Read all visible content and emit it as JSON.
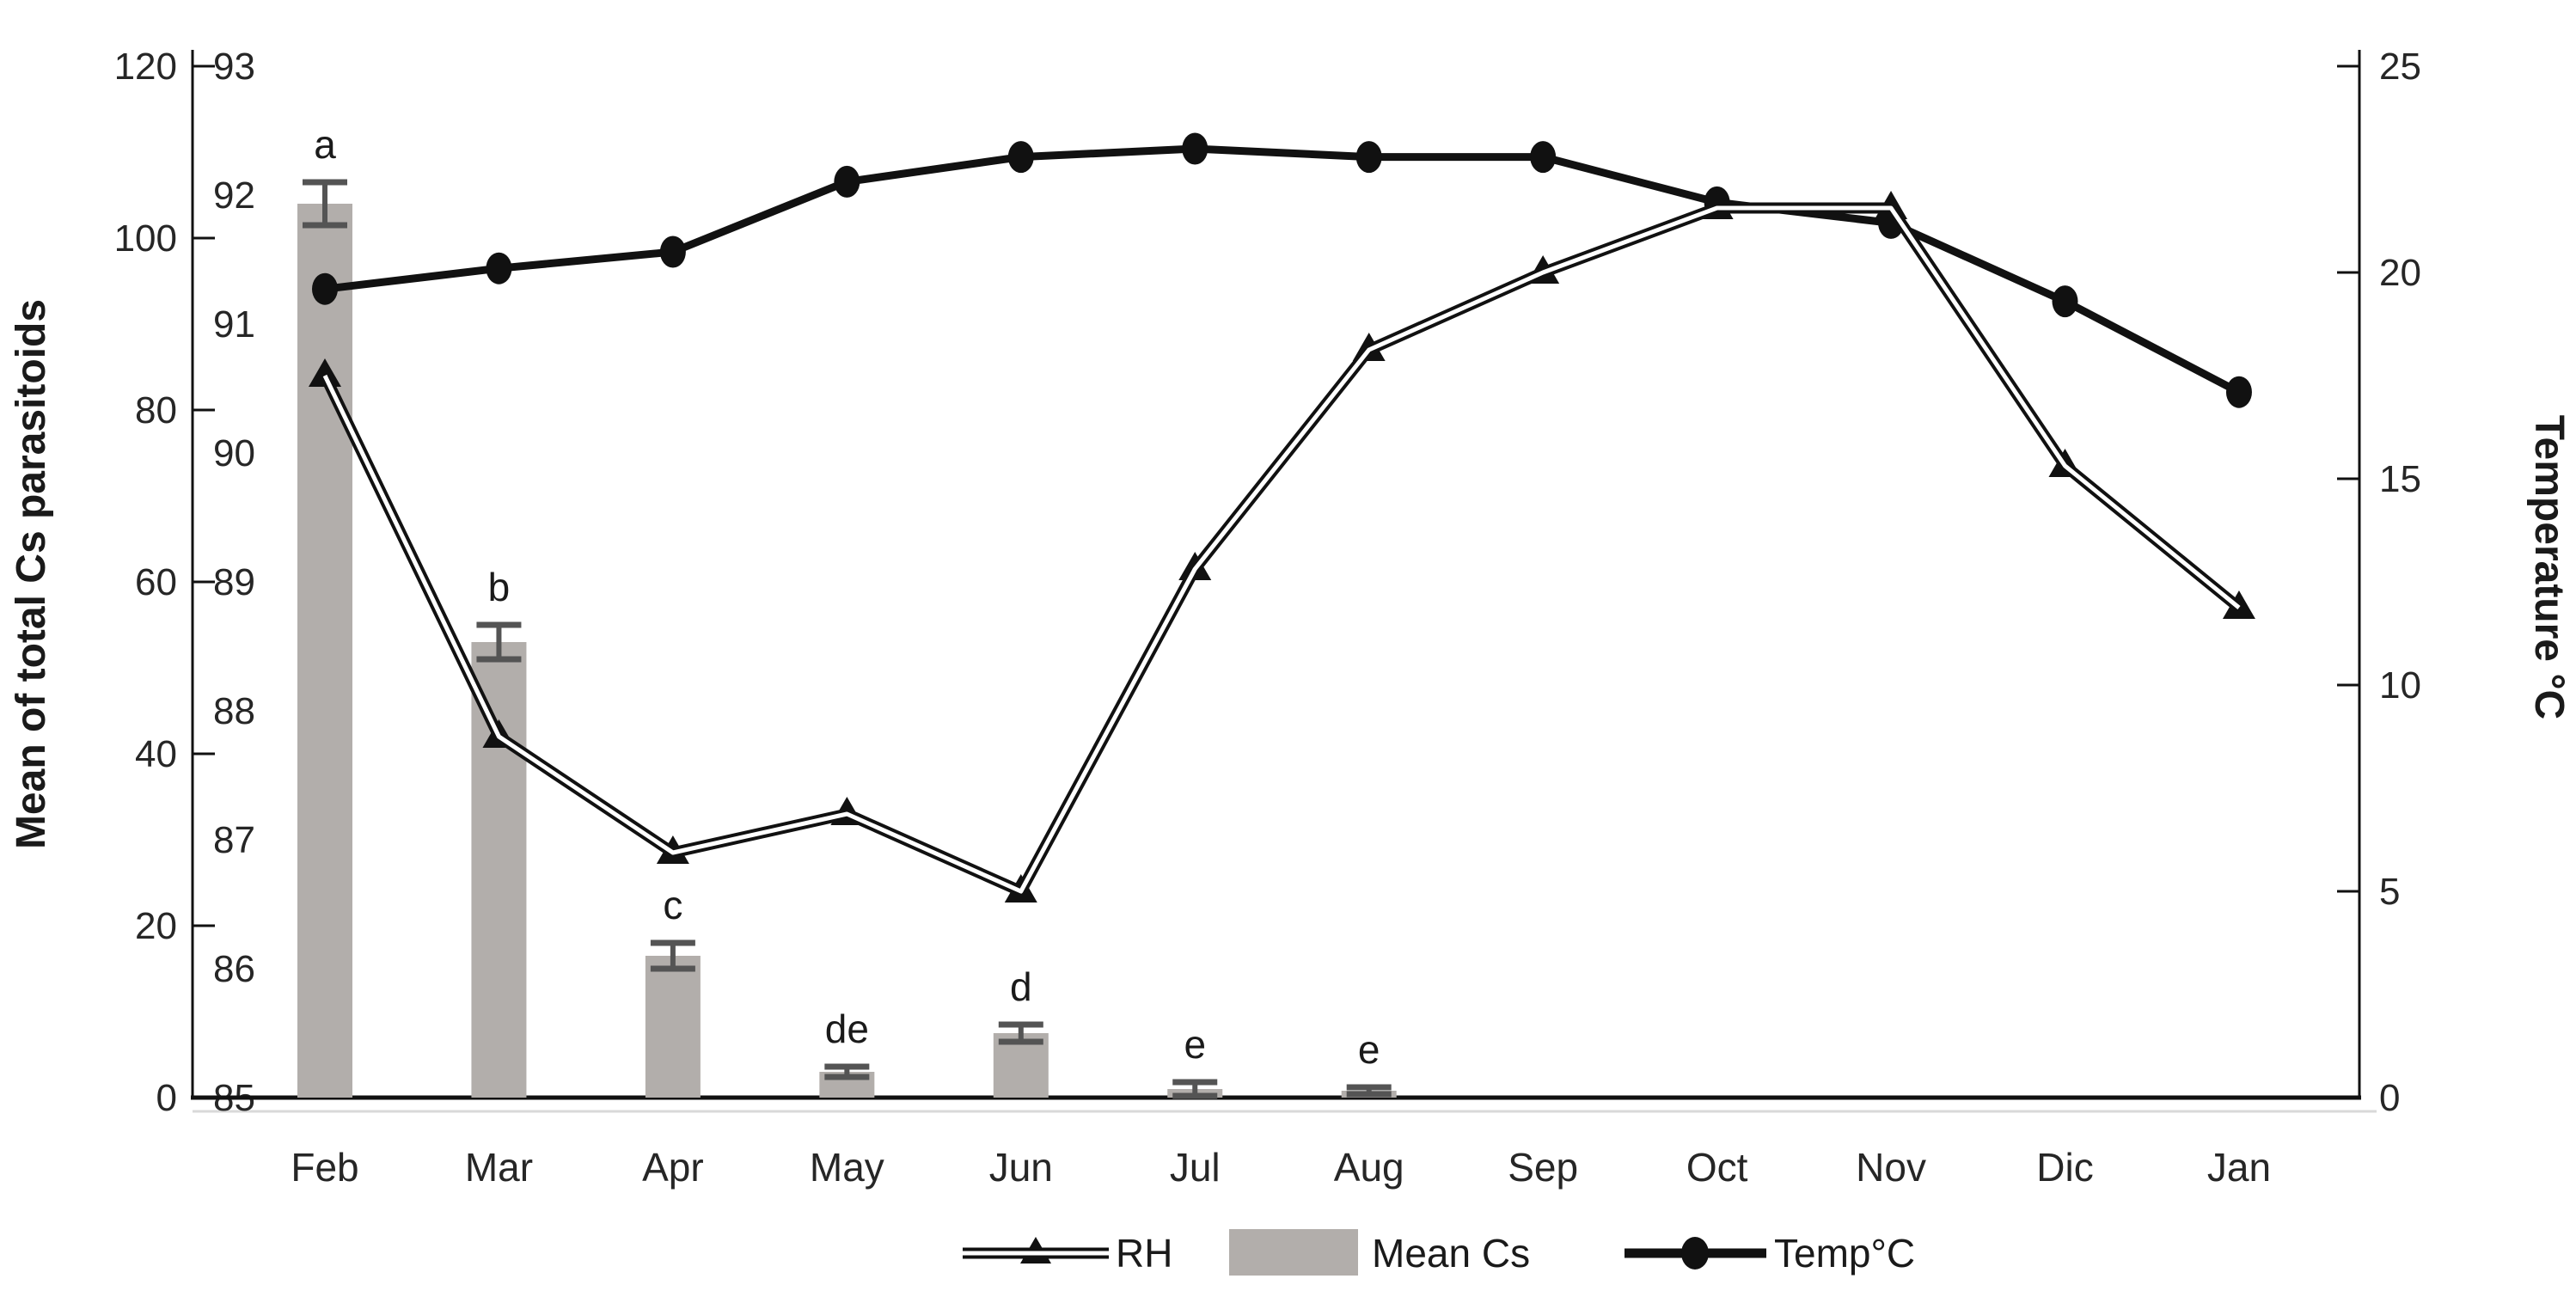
{
  "figure": {
    "background": "#ffffff",
    "line_color": "#111111",
    "text_color": "#262626"
  },
  "chart_data": {
    "type": "combo",
    "categories": [
      "Feb",
      "Mar",
      "Apr",
      "May",
      "Jun",
      "Jul",
      "Aug",
      "Sep",
      "Oct",
      "Nov",
      "Dic",
      "Jan"
    ],
    "series": [
      {
        "name": "Mean Cs",
        "type": "bar",
        "axis": "left_outer",
        "color": "#b2aeab",
        "error_color": "#545454",
        "values": [
          104,
          53,
          16.5,
          3,
          7.5,
          1,
          0.8,
          null,
          null,
          null,
          null,
          null
        ],
        "errors": [
          2.5,
          2,
          1.5,
          0.6,
          1,
          0.8,
          0.4,
          null,
          null,
          null,
          null,
          null
        ],
        "letters": [
          "a",
          "b",
          "c",
          "de",
          "d",
          "e",
          "e",
          null,
          null,
          null,
          null,
          null
        ]
      },
      {
        "name": "RH",
        "type": "line",
        "axis": "left_inner_rh",
        "marker": "triangle",
        "style": "double-line-white-core",
        "values": [
          90.6,
          87.8,
          86.9,
          87.2,
          86.6,
          89.1,
          90.8,
          91.4,
          91.9,
          91.9,
          89.9,
          88.8
        ]
      },
      {
        "name": "Temp°C",
        "type": "line",
        "axis": "right",
        "marker": "circle",
        "style": "thick-solid",
        "values": [
          19.6,
          20.1,
          20.5,
          22.2,
          22.8,
          23.0,
          22.8,
          22.8,
          21.7,
          21.2,
          19.3,
          17.1
        ]
      }
    ],
    "axes": {
      "left_outer": {
        "label": "Mean of total Cs parasitoids",
        "range": [
          0,
          120
        ],
        "ticks": [
          0,
          20,
          40,
          60,
          80,
          100,
          120
        ]
      },
      "left_inner_rh": {
        "label": "",
        "range": [
          85,
          93
        ],
        "ticks": [
          85,
          86,
          87,
          88,
          89,
          90,
          91,
          92,
          93
        ]
      },
      "right": {
        "label": "Temperature °C",
        "range": [
          0,
          25
        ],
        "ticks": [
          0,
          5,
          10,
          15,
          20,
          25
        ]
      },
      "x": {
        "categories": [
          "Feb",
          "Mar",
          "Apr",
          "May",
          "Jun",
          "Jul",
          "Aug",
          "Sep",
          "Oct",
          "Nov",
          "Dic",
          "Jan"
        ]
      }
    },
    "legend": [
      {
        "label": "RH",
        "swatch": "triangle-double-line"
      },
      {
        "label": "Mean Cs",
        "swatch": "gray-bar"
      },
      {
        "label": "Temp°C",
        "swatch": "circle-thick-line"
      }
    ],
    "grid": false,
    "legend_position": "bottom-center"
  }
}
